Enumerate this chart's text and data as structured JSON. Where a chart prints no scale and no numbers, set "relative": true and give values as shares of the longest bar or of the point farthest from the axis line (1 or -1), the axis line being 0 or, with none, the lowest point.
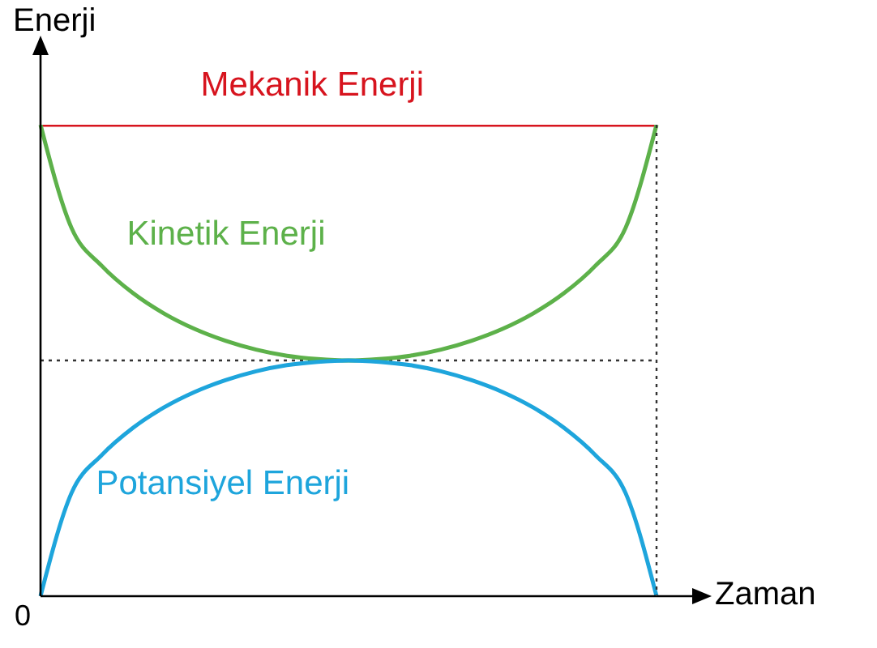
{
  "chart_data": {
    "type": "line",
    "relative": true,
    "xlabel": "Zaman",
    "ylabel": "Enerji",
    "annotations": [
      "0"
    ],
    "categories": [
      null,
      null,
      null,
      null,
      null,
      null,
      null,
      null,
      null,
      null,
      null,
      null,
      null,
      null,
      null,
      null,
      null,
      null,
      null,
      null,
      null
    ],
    "legend": false,
    "grid": false,
    "marker": "none",
    "line_style": "solid",
    "ref_lines": [
      {
        "axis": "y",
        "value": 0.5,
        "line_style": "dotted",
        "color": "#333333"
      }
    ],
    "series": [
      {
        "name": "Mekanik Enerji",
        "color": "#d7141e",
        "values": [
          1,
          1,
          1,
          1,
          1,
          1,
          1,
          1,
          1,
          1,
          1,
          1,
          1,
          1,
          1,
          1,
          1,
          1,
          1,
          1,
          1
        ]
      },
      {
        "name": "Kinetik Enerji",
        "color": "#5db14a",
        "values": [
          1,
          0.782,
          0.7,
          0.643,
          0.6,
          0.567,
          0.542,
          0.523,
          0.51,
          0.503,
          0.5,
          0.503,
          0.51,
          0.523,
          0.542,
          0.567,
          0.6,
          0.643,
          0.7,
          0.782,
          1
        ]
      },
      {
        "name": "Potansiyel Enerji",
        "color": "#1ea5dc",
        "values": [
          0,
          0.218,
          0.3,
          0.357,
          0.4,
          0.433,
          0.458,
          0.477,
          0.49,
          0.497,
          0.5,
          0.497,
          0.49,
          0.477,
          0.458,
          0.433,
          0.4,
          0.357,
          0.3,
          0.218,
          0
        ]
      }
    ]
  }
}
